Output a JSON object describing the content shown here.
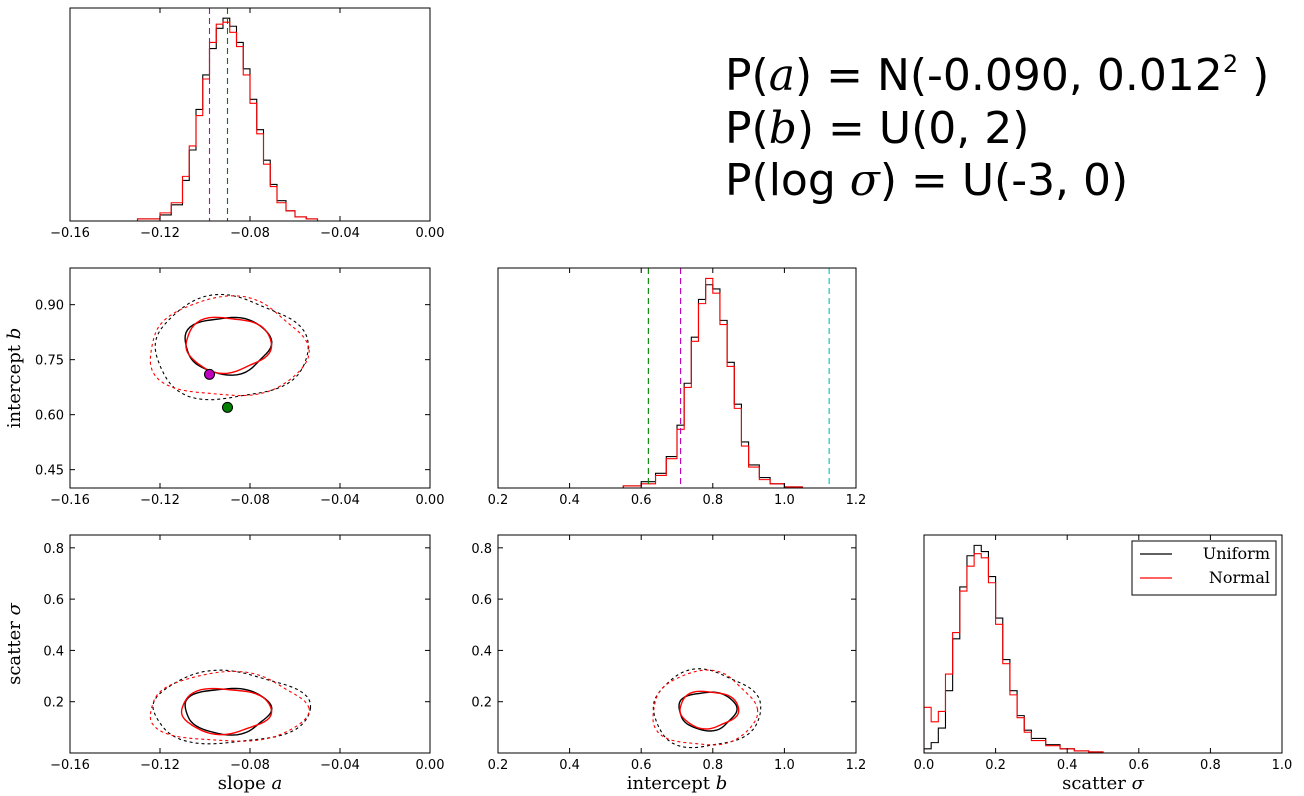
{
  "priors": {
    "a": {
      "pre": "P(",
      "var": "a",
      "post": ") = N(-0.090, 0.012",
      "sup": "2",
      "end": " )"
    },
    "b": {
      "pre": "P(",
      "var": "b",
      "post": ") = U(0, 2)"
    },
    "sigma": {
      "pre": "P(log ",
      "var": "σ",
      "post": ") = U(-3, 0)"
    }
  },
  "colors": {
    "uniform": "#000000",
    "normal": "#ff0000",
    "truth_green": "#008000",
    "truth_magenta": "#bf00bf",
    "ref_cyan": "#00bfbf"
  },
  "chart_data": [
    {
      "panel": "hist-a",
      "type": "line",
      "xlim": [
        -0.16,
        0.0
      ],
      "xticks": [
        "−0.16",
        "−0.12",
        "−0.08",
        "−0.04",
        "0.00"
      ],
      "xtick_values": [
        -0.16,
        -0.12,
        -0.08,
        -0.04,
        0.0
      ],
      "series": [
        {
          "name": "Uniform",
          "x": [
            -0.14,
            -0.13,
            -0.12,
            -0.115,
            -0.11,
            -0.107,
            -0.104,
            -0.101,
            -0.098,
            -0.095,
            -0.092,
            -0.089,
            -0.086,
            -0.083,
            -0.08,
            -0.077,
            -0.074,
            -0.071,
            -0.068,
            -0.064,
            -0.06,
            -0.055,
            -0.05
          ],
          "y": [
            0.0,
            0.01,
            0.03,
            0.08,
            0.2,
            0.35,
            0.55,
            0.72,
            0.85,
            0.95,
            1.0,
            0.96,
            0.88,
            0.75,
            0.6,
            0.45,
            0.3,
            0.18,
            0.1,
            0.05,
            0.02,
            0.01,
            0.0
          ]
        },
        {
          "name": "Normal",
          "x": [
            -0.14,
            -0.13,
            -0.12,
            -0.115,
            -0.11,
            -0.107,
            -0.104,
            -0.101,
            -0.098,
            -0.095,
            -0.092,
            -0.089,
            -0.086,
            -0.083,
            -0.08,
            -0.077,
            -0.074,
            -0.071,
            -0.068,
            -0.064,
            -0.06,
            -0.055,
            -0.05
          ],
          "y": [
            0.0,
            0.01,
            0.04,
            0.09,
            0.22,
            0.37,
            0.52,
            0.7,
            0.88,
            0.97,
            0.98,
            0.93,
            0.86,
            0.72,
            0.58,
            0.43,
            0.28,
            0.17,
            0.09,
            0.05,
            0.02,
            0.01,
            0.0
          ]
        }
      ],
      "vlines": [
        {
          "x": -0.098,
          "color": "truth_magenta"
        },
        {
          "x": -0.09,
          "color": "truth_green"
        }
      ]
    },
    {
      "panel": "scatter-a-b",
      "type": "scatter",
      "xlim": [
        -0.16,
        0.0
      ],
      "ylim": [
        0.4,
        1.0
      ],
      "xticks": [
        "−0.16",
        "−0.12",
        "−0.08",
        "−0.04",
        "0.00"
      ],
      "xtick_values": [
        -0.16,
        -0.12,
        -0.08,
        -0.04,
        0.0
      ],
      "yticks": [
        "0.45",
        "0.60",
        "0.75",
        "0.90"
      ],
      "ytick_values": [
        0.45,
        0.6,
        0.75,
        0.9
      ],
      "ylabel": "intercept ",
      "ylabel_var": "b",
      "contours": [
        {
          "cx": -0.09,
          "cy": 0.79,
          "rx": 0.019,
          "ry": 0.078,
          "color": "uniform",
          "dash": false
        },
        {
          "cx": -0.09,
          "cy": 0.792,
          "rx": 0.019,
          "ry": 0.075,
          "color": "normal",
          "dash": false
        },
        {
          "cx": -0.089,
          "cy": 0.78,
          "rx": 0.034,
          "ry": 0.14,
          "color": "uniform",
          "dash": true
        },
        {
          "cx": -0.09,
          "cy": 0.781,
          "rx": 0.035,
          "ry": 0.135,
          "color": "normal",
          "dash": true
        }
      ],
      "points": [
        {
          "x": -0.098,
          "y": 0.71,
          "color": "truth_magenta"
        },
        {
          "x": -0.09,
          "y": 0.62,
          "color": "truth_green"
        }
      ]
    },
    {
      "panel": "hist-b",
      "type": "line",
      "xlim": [
        0.2,
        1.2
      ],
      "xticks": [
        "0.2",
        "0.4",
        "0.6",
        "0.8",
        "1.0",
        "1.2"
      ],
      "xtick_values": [
        0.2,
        0.4,
        0.6,
        0.8,
        1.0,
        1.2
      ],
      "series": [
        {
          "name": "Uniform",
          "x": [
            0.45,
            0.55,
            0.6,
            0.64,
            0.67,
            0.7,
            0.72,
            0.74,
            0.76,
            0.78,
            0.8,
            0.82,
            0.84,
            0.86,
            0.88,
            0.9,
            0.93,
            0.96,
            1.0,
            1.05
          ],
          "y": [
            0.0,
            0.01,
            0.03,
            0.07,
            0.15,
            0.3,
            0.5,
            0.72,
            0.9,
            0.97,
            0.95,
            0.8,
            0.6,
            0.4,
            0.22,
            0.11,
            0.05,
            0.02,
            0.005,
            0.0
          ]
        },
        {
          "name": "Normal",
          "x": [
            0.45,
            0.55,
            0.6,
            0.64,
            0.67,
            0.7,
            0.72,
            0.74,
            0.76,
            0.78,
            0.8,
            0.82,
            0.84,
            0.86,
            0.88,
            0.9,
            0.93,
            0.96,
            1.0,
            1.05
          ],
          "y": [
            0.0,
            0.01,
            0.02,
            0.06,
            0.14,
            0.28,
            0.48,
            0.7,
            0.88,
            1.0,
            0.93,
            0.78,
            0.58,
            0.38,
            0.2,
            0.1,
            0.04,
            0.02,
            0.005,
            0.0
          ]
        }
      ],
      "vlines": [
        {
          "x": 0.62,
          "color": "truth_green"
        },
        {
          "x": 0.71,
          "color": "truth_magenta"
        },
        {
          "x": 1.125,
          "color": "ref_cyan"
        }
      ]
    },
    {
      "panel": "scatter-a-sigma",
      "type": "scatter",
      "xlim": [
        -0.16,
        0.0
      ],
      "ylim": [
        0.0,
        0.85
      ],
      "xticks": [
        "−0.16",
        "−0.12",
        "−0.08",
        "−0.04",
        "0.00"
      ],
      "xtick_values": [
        -0.16,
        -0.12,
        -0.08,
        -0.04,
        0.0
      ],
      "yticks": [
        "0.2",
        "0.4",
        "0.6",
        "0.8"
      ],
      "ytick_values": [
        0.2,
        0.4,
        0.6,
        0.8
      ],
      "xlabel": "slope ",
      "xlabel_var": "a",
      "ylabel": "scatter ",
      "ylabel_var": "σ",
      "contours": [
        {
          "cx": -0.09,
          "cy": 0.165,
          "rx": 0.019,
          "ry": 0.09,
          "color": "uniform",
          "dash": false
        },
        {
          "cx": -0.091,
          "cy": 0.165,
          "rx": 0.02,
          "ry": 0.088,
          "color": "normal",
          "dash": false
        },
        {
          "cx": -0.089,
          "cy": 0.175,
          "rx": 0.035,
          "ry": 0.14,
          "color": "uniform",
          "dash": true
        },
        {
          "cx": -0.09,
          "cy": 0.175,
          "rx": 0.035,
          "ry": 0.135,
          "color": "normal",
          "dash": true
        }
      ],
      "points": []
    },
    {
      "panel": "scatter-b-sigma",
      "type": "scatter",
      "xlim": [
        0.2,
        1.2
      ],
      "ylim": [
        0.0,
        0.85
      ],
      "xticks": [
        "0.2",
        "0.4",
        "0.6",
        "0.8",
        "1.0",
        "1.2"
      ],
      "xtick_values": [
        0.2,
        0.4,
        0.6,
        0.8,
        1.0,
        1.2
      ],
      "yticks": [
        "0.2",
        "0.4",
        "0.6",
        "0.8"
      ],
      "ytick_values": [
        0.2,
        0.4,
        0.6,
        0.8
      ],
      "xlabel": "intercept ",
      "xlabel_var": "b",
      "contours": [
        {
          "cx": 0.785,
          "cy": 0.165,
          "rx": 0.08,
          "ry": 0.075,
          "color": "uniform",
          "dash": false
        },
        {
          "cx": 0.788,
          "cy": 0.17,
          "rx": 0.082,
          "ry": 0.072,
          "color": "normal",
          "dash": false
        },
        {
          "cx": 0.78,
          "cy": 0.17,
          "rx": 0.15,
          "ry": 0.15,
          "color": "uniform",
          "dash": true
        },
        {
          "cx": 0.775,
          "cy": 0.17,
          "rx": 0.145,
          "ry": 0.145,
          "color": "normal",
          "dash": true
        }
      ],
      "points": []
    },
    {
      "panel": "hist-sigma",
      "type": "line",
      "xlim": [
        0.0,
        1.0
      ],
      "xticks": [
        "0.0",
        "0.2",
        "0.4",
        "0.6",
        "0.8",
        "1.0"
      ],
      "xtick_values": [
        0.0,
        0.2,
        0.4,
        0.6,
        0.8,
        1.0
      ],
      "xlabel": "scatter ",
      "xlabel_var": "σ",
      "legend": [
        "Uniform",
        "Normal"
      ],
      "legend_loc": "upper right",
      "series": [
        {
          "name": "Uniform",
          "x": [
            0.0,
            0.02,
            0.04,
            0.06,
            0.08,
            0.1,
            0.12,
            0.14,
            0.16,
            0.18,
            0.2,
            0.22,
            0.24,
            0.26,
            0.28,
            0.3,
            0.34,
            0.38,
            0.42,
            0.46,
            0.5
          ],
          "y": [
            0.02,
            0.05,
            0.12,
            0.3,
            0.55,
            0.8,
            0.95,
            1.0,
            0.97,
            0.85,
            0.65,
            0.45,
            0.3,
            0.18,
            0.11,
            0.07,
            0.04,
            0.02,
            0.01,
            0.005,
            0.0
          ]
        },
        {
          "name": "Normal",
          "x": [
            0.0,
            0.02,
            0.04,
            0.06,
            0.08,
            0.1,
            0.12,
            0.14,
            0.16,
            0.18,
            0.2,
            0.22,
            0.24,
            0.26,
            0.28,
            0.3,
            0.34,
            0.38,
            0.42,
            0.46,
            0.5
          ],
          "y": [
            0.22,
            0.15,
            0.2,
            0.38,
            0.58,
            0.78,
            0.9,
            0.96,
            0.94,
            0.82,
            0.62,
            0.43,
            0.28,
            0.17,
            0.1,
            0.06,
            0.035,
            0.02,
            0.01,
            0.005,
            0.0
          ]
        }
      ]
    }
  ]
}
